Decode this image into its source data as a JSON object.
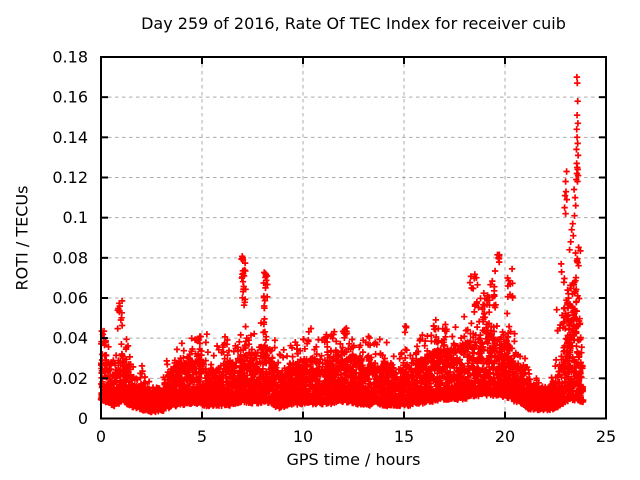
{
  "chart_data": {
    "type": "scatter",
    "title": "Day 259 of 2016, Rate Of TEC Index for receiver cuib",
    "xlabel": "GPS time / hours",
    "ylabel": "ROTI / TECUs",
    "xlim": [
      0,
      25
    ],
    "ylim": [
      0,
      0.18
    ],
    "xticks": [
      0,
      5,
      10,
      15,
      20,
      25
    ],
    "xtick_labels": [
      "0",
      "5",
      "10",
      "15",
      "20",
      "25"
    ],
    "yticks": [
      0,
      0.02,
      0.04,
      0.06,
      0.08,
      0.1,
      0.12,
      0.14,
      0.16,
      0.18
    ],
    "ytick_labels": [
      "0",
      "0.02",
      "0.04",
      "0.06",
      "0.08",
      "0.1",
      "0.12",
      "0.14",
      "0.16",
      "0.18"
    ],
    "grid": true,
    "grid_color": "#ababab",
    "axis_color": "#000000",
    "background_color": "#ffffff",
    "legend": "none",
    "marker": {
      "shape": "plus",
      "color": "#ff0000",
      "size": 6.5
    },
    "time_range_hours": [
      0.0,
      23.87
    ],
    "n_points_approx": 6500,
    "seed": 259,
    "band_envelope_comment": "dense baseline band of ROTI values; entries = [hour, band_min, band_typical_max, band_tip_max] TECUs",
    "band": [
      [
        0.0,
        0.01,
        0.036,
        0.044
      ],
      [
        0.4,
        0.008,
        0.028,
        0.036
      ],
      [
        0.7,
        0.007,
        0.024,
        0.03
      ],
      [
        1.0,
        0.009,
        0.034,
        0.048
      ],
      [
        1.3,
        0.008,
        0.03,
        0.04
      ],
      [
        1.6,
        0.006,
        0.02,
        0.026
      ],
      [
        2.0,
        0.005,
        0.016,
        0.023
      ],
      [
        2.5,
        0.004,
        0.013,
        0.019
      ],
      [
        3.0,
        0.004,
        0.015,
        0.022
      ],
      [
        3.4,
        0.006,
        0.024,
        0.032
      ],
      [
        3.8,
        0.007,
        0.029,
        0.04
      ],
      [
        4.2,
        0.008,
        0.031,
        0.042
      ],
      [
        4.7,
        0.008,
        0.032,
        0.04
      ],
      [
        5.2,
        0.007,
        0.028,
        0.038
      ],
      [
        5.7,
        0.007,
        0.026,
        0.035
      ],
      [
        6.2,
        0.007,
        0.028,
        0.04
      ],
      [
        6.7,
        0.008,
        0.03,
        0.042
      ],
      [
        7.1,
        0.009,
        0.036,
        0.048
      ],
      [
        7.5,
        0.008,
        0.032,
        0.044
      ],
      [
        8.0,
        0.009,
        0.038,
        0.05
      ],
      [
        8.4,
        0.008,
        0.034,
        0.046
      ],
      [
        8.8,
        0.006,
        0.024,
        0.034
      ],
      [
        9.3,
        0.007,
        0.026,
        0.036
      ],
      [
        9.8,
        0.008,
        0.029,
        0.04
      ],
      [
        10.3,
        0.008,
        0.031,
        0.042
      ],
      [
        10.8,
        0.008,
        0.029,
        0.04
      ],
      [
        11.3,
        0.008,
        0.031,
        0.042
      ],
      [
        11.8,
        0.009,
        0.033,
        0.044
      ],
      [
        12.2,
        0.009,
        0.032,
        0.043
      ],
      [
        12.7,
        0.008,
        0.029,
        0.039
      ],
      [
        13.2,
        0.007,
        0.028,
        0.038
      ],
      [
        13.7,
        0.008,
        0.029,
        0.04
      ],
      [
        14.2,
        0.007,
        0.027,
        0.037
      ],
      [
        14.7,
        0.007,
        0.026,
        0.035
      ],
      [
        15.2,
        0.007,
        0.028,
        0.038
      ],
      [
        15.7,
        0.008,
        0.03,
        0.04
      ],
      [
        16.2,
        0.009,
        0.032,
        0.043
      ],
      [
        16.7,
        0.01,
        0.035,
        0.046
      ],
      [
        17.2,
        0.01,
        0.034,
        0.045
      ],
      [
        17.7,
        0.01,
        0.035,
        0.047
      ],
      [
        18.2,
        0.011,
        0.04,
        0.053
      ],
      [
        18.7,
        0.012,
        0.044,
        0.058
      ],
      [
        19.2,
        0.012,
        0.046,
        0.06
      ],
      [
        19.7,
        0.012,
        0.044,
        0.058
      ],
      [
        20.1,
        0.011,
        0.04,
        0.053
      ],
      [
        20.5,
        0.009,
        0.032,
        0.043
      ],
      [
        20.9,
        0.007,
        0.024,
        0.032
      ],
      [
        21.3,
        0.005,
        0.018,
        0.025
      ],
      [
        21.8,
        0.005,
        0.015,
        0.021
      ],
      [
        22.3,
        0.005,
        0.017,
        0.024
      ],
      [
        22.7,
        0.007,
        0.026,
        0.038
      ],
      [
        23.0,
        0.009,
        0.04,
        0.058
      ],
      [
        23.3,
        0.01,
        0.048,
        0.066
      ],
      [
        23.6,
        0.01,
        0.05,
        0.07
      ],
      [
        23.87,
        0.008,
        0.032,
        0.045
      ]
    ],
    "clusters_comment": "distinct enhancement blobs; entries = [hour_center, hour_halfwidth, n_points, roti_min, roti_max]",
    "clusters": [
      [
        0.12,
        0.12,
        8,
        0.034,
        0.044
      ],
      [
        0.95,
        0.15,
        10,
        0.04,
        0.059
      ],
      [
        2.0,
        0.08,
        3,
        0.022,
        0.028
      ],
      [
        5.0,
        0.3,
        6,
        0.036,
        0.042
      ],
      [
        6.2,
        0.1,
        4,
        0.036,
        0.042
      ],
      [
        7.05,
        0.1,
        16,
        0.068,
        0.081
      ],
      [
        7.1,
        0.12,
        8,
        0.056,
        0.067
      ],
      [
        8.15,
        0.12,
        14,
        0.056,
        0.073
      ],
      [
        8.0,
        0.1,
        6,
        0.046,
        0.056
      ],
      [
        10.3,
        0.1,
        4,
        0.038,
        0.045
      ],
      [
        11.5,
        0.1,
        4,
        0.038,
        0.046
      ],
      [
        12.15,
        0.1,
        7,
        0.04,
        0.047
      ],
      [
        13.3,
        0.1,
        4,
        0.036,
        0.042
      ],
      [
        15.05,
        0.08,
        4,
        0.042,
        0.048
      ],
      [
        16.6,
        0.15,
        6,
        0.042,
        0.05
      ],
      [
        17.1,
        0.1,
        4,
        0.04,
        0.047
      ],
      [
        18.45,
        0.2,
        12,
        0.055,
        0.072
      ],
      [
        19.0,
        0.25,
        14,
        0.05,
        0.066
      ],
      [
        19.4,
        0.15,
        8,
        0.058,
        0.075
      ],
      [
        19.68,
        0.06,
        5,
        0.076,
        0.083
      ],
      [
        20.25,
        0.12,
        7,
        0.058,
        0.07
      ],
      [
        20.4,
        0.05,
        2,
        0.059,
        0.062
      ],
      [
        22.65,
        0.1,
        5,
        0.04,
        0.055
      ],
      [
        22.95,
        0.15,
        14,
        0.045,
        0.07
      ],
      [
        23.3,
        0.25,
        25,
        0.035,
        0.068
      ],
      [
        23.55,
        0.2,
        18,
        0.045,
        0.075
      ],
      [
        23.6,
        0.15,
        8,
        0.075,
        0.088
      ]
    ],
    "outliers_comment": "individually visible high points [hour, ROTI]",
    "outliers": [
      [
        23.56,
        0.17
      ],
      [
        23.58,
        0.167
      ],
      [
        23.6,
        0.158
      ],
      [
        23.57,
        0.151
      ],
      [
        23.61,
        0.147
      ],
      [
        23.55,
        0.144
      ],
      [
        23.57,
        0.14
      ],
      [
        23.6,
        0.137
      ],
      [
        23.54,
        0.134
      ],
      [
        23.62,
        0.131
      ],
      [
        23.55,
        0.127
      ],
      [
        23.58,
        0.125
      ],
      [
        23.6,
        0.124
      ],
      [
        23.56,
        0.122
      ],
      [
        23.62,
        0.121
      ],
      [
        23.53,
        0.119
      ],
      [
        23.59,
        0.118
      ],
      [
        23.05,
        0.123
      ],
      [
        23.0,
        0.118
      ],
      [
        23.02,
        0.113
      ],
      [
        22.97,
        0.111
      ],
      [
        23.06,
        0.109
      ],
      [
        22.95,
        0.105
      ],
      [
        23.0,
        0.102
      ],
      [
        23.42,
        0.114
      ],
      [
        23.47,
        0.11
      ],
      [
        23.5,
        0.106
      ],
      [
        23.44,
        0.101
      ],
      [
        23.35,
        0.097
      ],
      [
        23.3,
        0.094
      ],
      [
        23.38,
        0.091
      ],
      [
        23.25,
        0.088
      ],
      [
        23.2,
        0.084
      ],
      [
        22.78,
        0.077
      ],
      [
        22.8,
        0.073
      ],
      [
        20.35,
        0.0745
      ],
      [
        19.66,
        0.0815
      ],
      [
        19.7,
        0.0795
      ]
    ]
  }
}
